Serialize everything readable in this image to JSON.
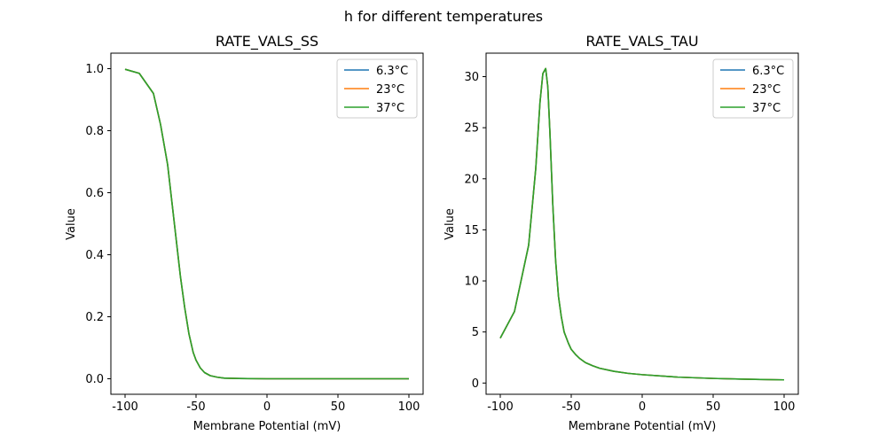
{
  "figure": {
    "suptitle": "h for different temperatures"
  },
  "chart_data": [
    {
      "type": "line",
      "title": "RATE_VALS_SS",
      "xlabel": "Membrane Potential (mV)",
      "ylabel": "Value",
      "xlim": [
        -110,
        110
      ],
      "ylim": [
        -0.05,
        1.05
      ],
      "xticks": [
        -100,
        -50,
        0,
        50,
        100
      ],
      "yticks": [
        0.0,
        0.2,
        0.4,
        0.6,
        0.8,
        1.0
      ],
      "ytick_labels": [
        "0.0",
        "0.2",
        "0.4",
        "0.6",
        "0.8",
        "1.0"
      ],
      "grid": false,
      "legend_position": "top-right",
      "series": [
        {
          "name": "6.3°C",
          "color": "#1f77b4"
        },
        {
          "name": "23°C",
          "color": "#ff7f0e"
        },
        {
          "name": "37°C",
          "color": "#2ca02c"
        }
      ],
      "x": [
        -100,
        -90,
        -80,
        -75,
        -70,
        -67,
        -64,
        -61,
        -58,
        -55,
        -52,
        -50,
        -47,
        -44,
        -40,
        -35,
        -30,
        -20,
        0,
        50,
        100
      ],
      "y": [
        0.998,
        0.985,
        0.92,
        0.82,
        0.69,
        0.57,
        0.45,
        0.33,
        0.23,
        0.145,
        0.085,
        0.06,
        0.035,
        0.02,
        0.01,
        0.005,
        0.002,
        0.001,
        0.0,
        0.0,
        0.0
      ]
    },
    {
      "type": "line",
      "title": "RATE_VALS_TAU",
      "xlabel": "Membrane Potential (mV)",
      "ylabel": "Value",
      "xlim": [
        -110,
        110
      ],
      "ylim": [
        -1.1,
        32.3
      ],
      "xticks": [
        -100,
        -50,
        0,
        50,
        100
      ],
      "yticks": [
        0,
        5,
        10,
        15,
        20,
        25,
        30
      ],
      "ytick_labels": [
        "0",
        "5",
        "10",
        "15",
        "20",
        "25",
        "30"
      ],
      "grid": false,
      "legend_position": "top-right",
      "series": [
        {
          "name": "6.3°C",
          "color": "#1f77b4"
        },
        {
          "name": "23°C",
          "color": "#ff7f0e"
        },
        {
          "name": "37°C",
          "color": "#2ca02c"
        }
      ],
      "x": [
        -100,
        -90,
        -80,
        -75,
        -72,
        -70,
        -68,
        -66.5,
        -65,
        -63,
        -61,
        -59,
        -57,
        -55,
        -52,
        -50,
        -47,
        -44,
        -40,
        -35,
        -30,
        -20,
        -10,
        0,
        25,
        50,
        75,
        100
      ],
      "y": [
        4.4,
        7.0,
        13.5,
        21.0,
        27.5,
        30.3,
        30.8,
        29.0,
        24.5,
        17.5,
        12.0,
        8.5,
        6.5,
        5.0,
        3.9,
        3.3,
        2.8,
        2.4,
        2.0,
        1.7,
        1.45,
        1.15,
        0.95,
        0.82,
        0.58,
        0.45,
        0.37,
        0.31
      ]
    }
  ]
}
